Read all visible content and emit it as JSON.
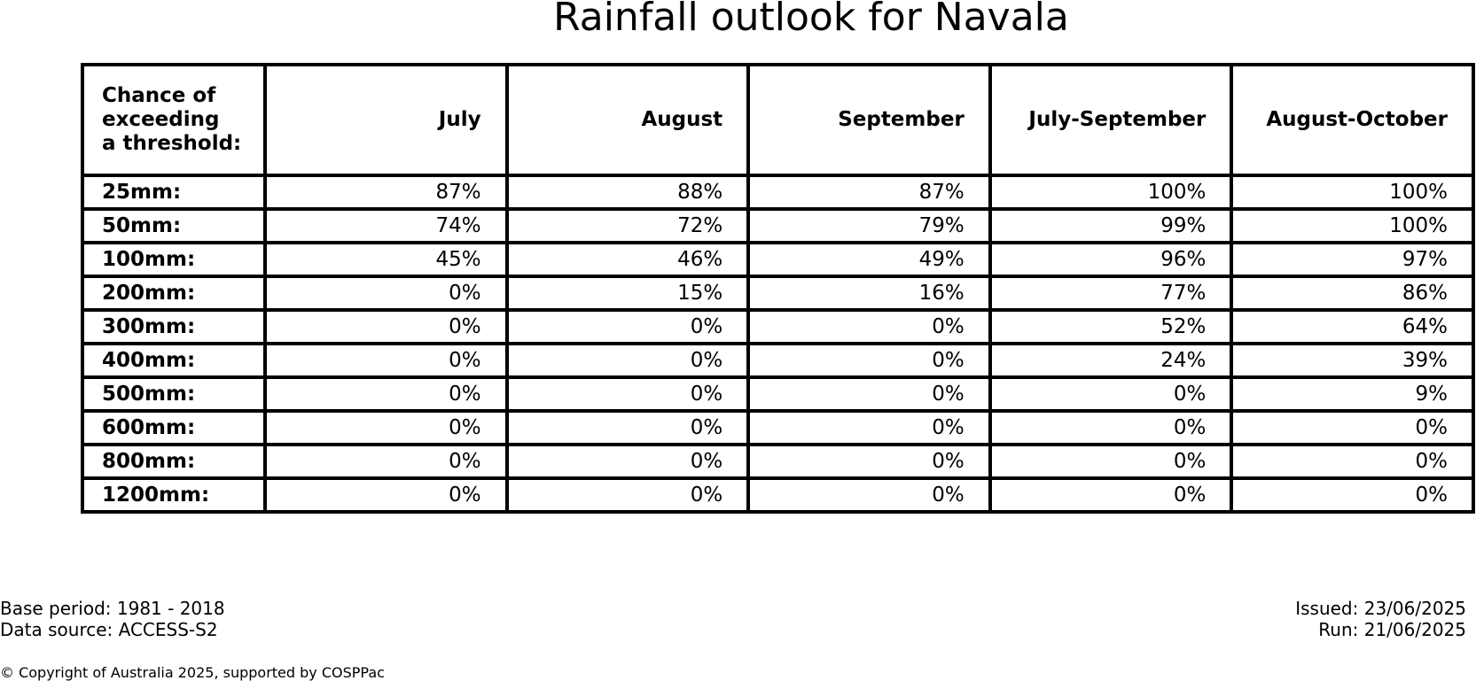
{
  "chart_data": {
    "type": "table",
    "title": "Rainfall outlook for Navala",
    "corner_header": [
      "Chance of",
      "exceeding",
      "a threshold:"
    ],
    "columns": [
      "July",
      "August",
      "September",
      "July-September",
      "August-October"
    ],
    "rows": [
      {
        "label": "25mm:",
        "values": [
          "87%",
          "88%",
          "87%",
          "100%",
          "100%"
        ]
      },
      {
        "label": "50mm:",
        "values": [
          "74%",
          "72%",
          "79%",
          "99%",
          "100%"
        ]
      },
      {
        "label": "100mm:",
        "values": [
          "45%",
          "46%",
          "49%",
          "96%",
          "97%"
        ]
      },
      {
        "label": "200mm:",
        "values": [
          "0%",
          "15%",
          "16%",
          "77%",
          "86%"
        ]
      },
      {
        "label": "300mm:",
        "values": [
          "0%",
          "0%",
          "0%",
          "52%",
          "64%"
        ]
      },
      {
        "label": "400mm:",
        "values": [
          "0%",
          "0%",
          "0%",
          "24%",
          "39%"
        ]
      },
      {
        "label": "500mm:",
        "values": [
          "0%",
          "0%",
          "0%",
          "0%",
          "9%"
        ]
      },
      {
        "label": "600mm:",
        "values": [
          "0%",
          "0%",
          "0%",
          "0%",
          "0%"
        ]
      },
      {
        "label": "800mm:",
        "values": [
          "0%",
          "0%",
          "0%",
          "0%",
          "0%"
        ]
      },
      {
        "label": "1200mm:",
        "values": [
          "0%",
          "0%",
          "0%",
          "0%",
          "0%"
        ]
      }
    ]
  },
  "footer": {
    "base_period": "Base period: 1981 - 2018",
    "data_source": "Data source: ACCESS-S2",
    "issued": "Issued: 23/06/2025",
    "run": "Run: 21/06/2025",
    "copyright": "© Copyright of Australia 2025, supported by COSPPac"
  }
}
